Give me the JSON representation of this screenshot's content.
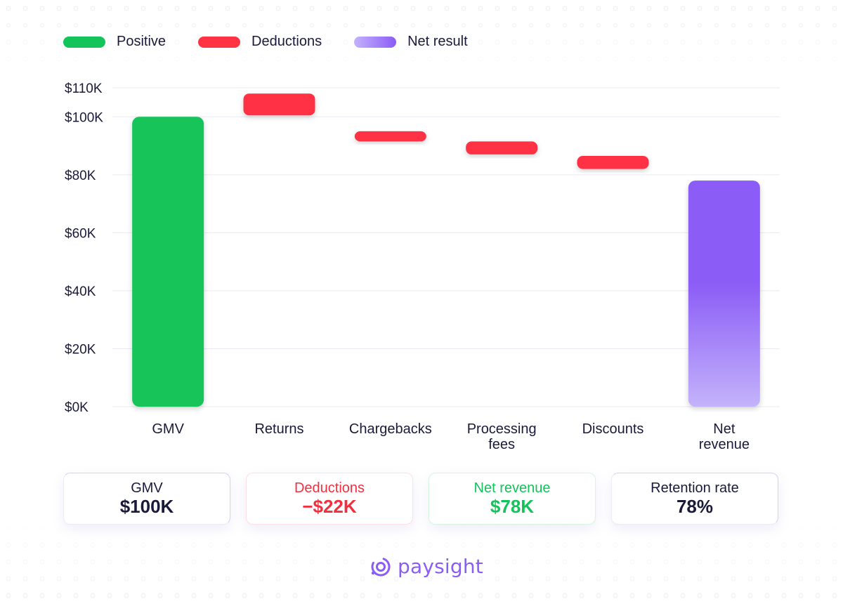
{
  "legend": [
    {
      "label": "Positive",
      "color": "#12c45a"
    },
    {
      "label": "Deductions",
      "color": "#ff3344"
    },
    {
      "label": "Net result",
      "color": "#8b5cf6"
    }
  ],
  "chart_data": {
    "type": "bar",
    "subtype": "waterfall",
    "title": "",
    "xlabel": "",
    "ylabel": "",
    "ylim": [
      0,
      110000
    ],
    "yticks": [
      {
        "value": 0,
        "label": "$0K"
      },
      {
        "value": 20000,
        "label": "$20K"
      },
      {
        "value": 40000,
        "label": "$40K"
      },
      {
        "value": 60000,
        "label": "$60K"
      },
      {
        "value": 80000,
        "label": "$80K"
      },
      {
        "value": 100000,
        "label": "$100K"
      },
      {
        "value": 110000,
        "label": "$110K"
      }
    ],
    "grid": true,
    "legend_position": "top-left",
    "bars": [
      {
        "category": "GMV",
        "label_lines": [
          "GMV"
        ],
        "kind": "positive",
        "start": 0,
        "end": 100000
      },
      {
        "category": "Returns",
        "label_lines": [
          "Returns"
        ],
        "kind": "deduction",
        "start": 100500,
        "end": 108000
      },
      {
        "category": "Chargebacks",
        "label_lines": [
          "Chargebacks"
        ],
        "kind": "deduction",
        "start": 91500,
        "end": 95000
      },
      {
        "category": "Processing fees",
        "label_lines": [
          "Processing",
          "fees"
        ],
        "kind": "deduction",
        "start": 87000,
        "end": 91500
      },
      {
        "category": "Discounts",
        "label_lines": [
          "Discounts"
        ],
        "kind": "deduction",
        "start": 82000,
        "end": 86500
      },
      {
        "category": "Net revenue",
        "label_lines": [
          "Net",
          "revenue"
        ],
        "kind": "net",
        "start": 0,
        "end": 78000
      }
    ],
    "colors": {
      "positive": "#12c45a",
      "deduction": "#ff3344",
      "net_top": "#8b5cf6",
      "net_bottom": "#c4b3fb",
      "grid": "#ebe9f3"
    }
  },
  "summary": {
    "gmv": {
      "label": "GMV",
      "value": "$100K",
      "color": "#1b1a3a"
    },
    "deductions": {
      "label": "Deductions",
      "value": "−$22K",
      "color": "#f0303f"
    },
    "net_revenue": {
      "label": "Net revenue",
      "value": "$78K",
      "color": "#12c45a"
    },
    "retention": {
      "label": "Retention rate",
      "value": "78%",
      "color": "#1b1a3a"
    }
  },
  "brand": {
    "name": "paysight",
    "icon": "paysight-logo-icon"
  }
}
